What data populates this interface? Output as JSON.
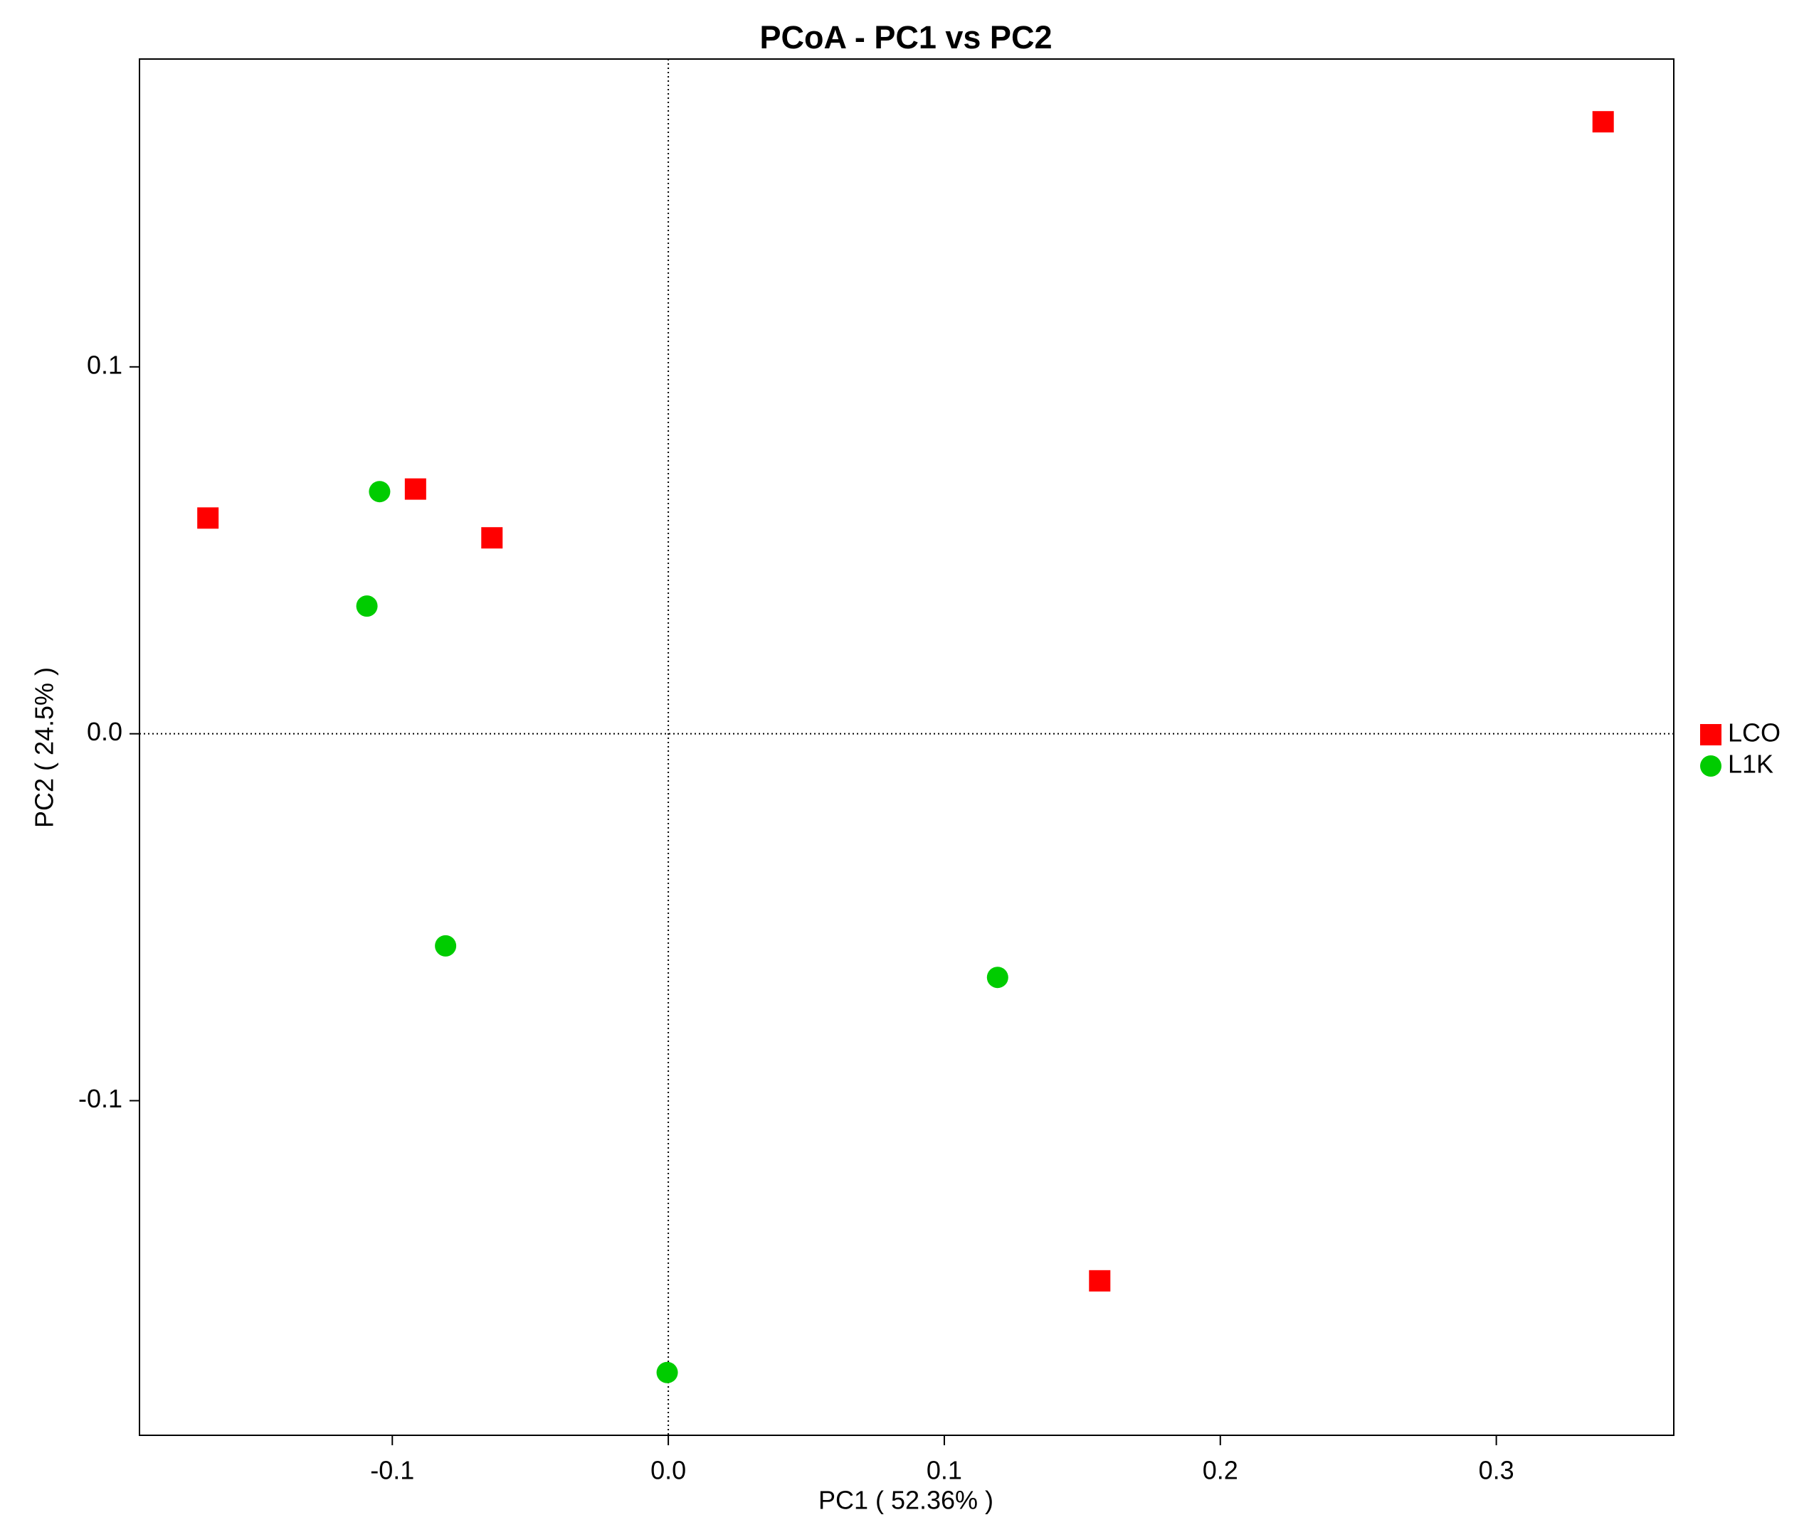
{
  "chart_data": {
    "type": "scatter",
    "title": "PCoA - PC1 vs PC2",
    "x_label": "PC1 ( 52.36% )",
    "y_label": "PC2 ( 24.5% )",
    "xlim": [
      -0.1916,
      0.3643
    ],
    "ylim": [
      -0.1912,
      0.1839
    ],
    "xticks": [
      -0.1,
      {
        "value": 0,
        "label": "0.0"
      },
      0.1,
      0.2,
      0.3
    ],
    "yticks": [
      -0.1,
      {
        "value": 0,
        "label": "0.0"
      },
      0.1
    ],
    "zero_lines": true,
    "legend": "right",
    "series": [
      {
        "name": "LCO",
        "color": "#ff0000",
        "marker": "square",
        "x": [
          -0.1668,
          -0.0916,
          -0.0639,
          0.3387,
          0.1563
        ],
        "values": [
          0.0588,
          0.0667,
          0.0534,
          0.1668,
          -0.1491
        ]
      },
      {
        "name": "L1K",
        "color": "#00cc00",
        "marker": "circle",
        "x": [
          -0.1046,
          -0.1092,
          -0.0807,
          0.1193,
          -0.0004
        ],
        "values": [
          0.066,
          0.0348,
          -0.0578,
          -0.0664,
          -0.1741
        ]
      }
    ]
  }
}
